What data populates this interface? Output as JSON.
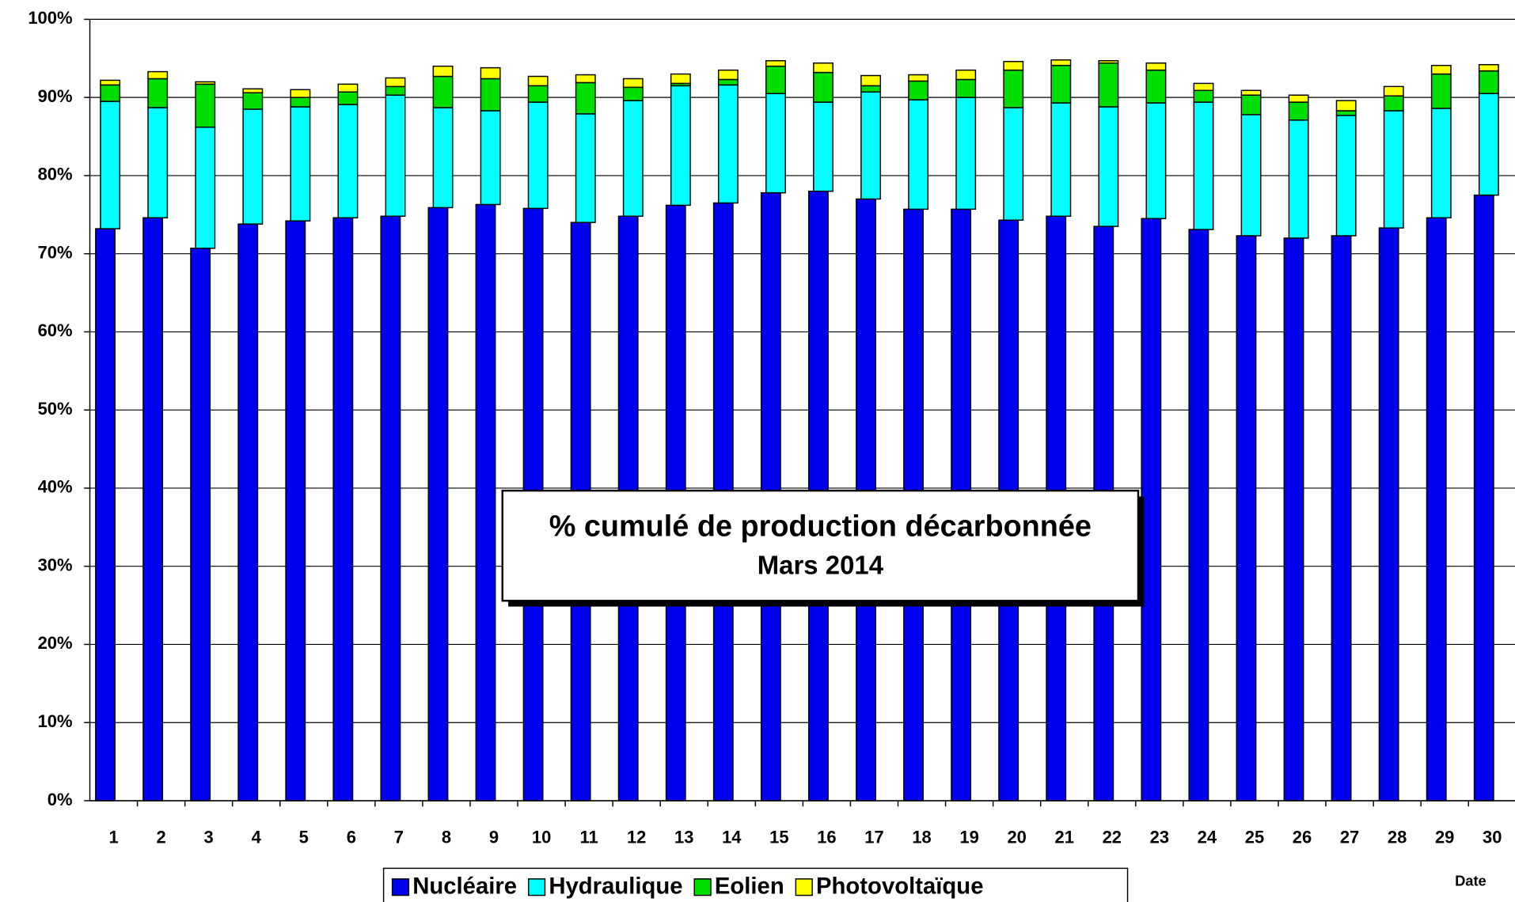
{
  "chart_data": {
    "type": "stacked-bar",
    "title": "% cumulé de production décarbonnée",
    "subtitle": "Mars 2014",
    "x_label": "Date",
    "categories": [
      "1",
      "2",
      "3",
      "4",
      "5",
      "6",
      "7",
      "8",
      "9",
      "10",
      "11",
      "12",
      "13",
      "14",
      "15",
      "16",
      "17",
      "18",
      "19",
      "20",
      "21",
      "22",
      "23",
      "24",
      "25",
      "26",
      "27",
      "28",
      "29",
      "30"
    ],
    "series": [
      {
        "name": "Nucléaire",
        "color": "#0000ee",
        "values": [
          73.2,
          74.6,
          70.7,
          73.8,
          74.2,
          74.6,
          74.8,
          75.9,
          76.3,
          75.8,
          74.0,
          74.8,
          76.2,
          76.5,
          77.8,
          78.0,
          77.0,
          75.7,
          75.7,
          74.3,
          74.8,
          73.5,
          74.5,
          73.1,
          72.3,
          72.0,
          72.3,
          73.3,
          74.6,
          77.5
        ]
      },
      {
        "name": "Hydraulique",
        "color": "#00ffff",
        "values": [
          16.3,
          14.1,
          15.5,
          14.7,
          14.6,
          14.5,
          15.5,
          12.8,
          12.0,
          13.6,
          13.9,
          14.8,
          15.3,
          15.1,
          12.7,
          11.4,
          13.7,
          14.0,
          14.3,
          14.4,
          14.5,
          15.3,
          14.8,
          16.3,
          15.5,
          15.1,
          15.4,
          15.0,
          14.0,
          13.0
        ]
      },
      {
        "name": "Eolien",
        "color": "#00dd00",
        "values": [
          2.1,
          3.7,
          5.5,
          2.1,
          1.2,
          1.6,
          1.1,
          4.0,
          4.1,
          2.1,
          4.0,
          1.7,
          0.3,
          0.7,
          3.5,
          3.8,
          0.8,
          2.4,
          2.3,
          4.8,
          4.8,
          5.6,
          4.2,
          1.5,
          2.5,
          2.3,
          0.6,
          1.9,
          4.4,
          2.9
        ]
      },
      {
        "name": "Photovoltaïque",
        "color": "#ffff00",
        "values": [
          0.6,
          0.9,
          0.3,
          0.5,
          1.0,
          1.0,
          1.1,
          1.3,
          1.4,
          1.2,
          1.0,
          1.1,
          1.2,
          1.2,
          0.7,
          1.2,
          1.3,
          0.8,
          1.2,
          1.1,
          0.7,
          0.3,
          0.9,
          0.9,
          0.6,
          0.9,
          1.3,
          1.2,
          1.1,
          0.8
        ]
      }
    ],
    "ylim": [
      0,
      100
    ],
    "yticks": [
      {
        "value": 0,
        "label": "0%"
      },
      {
        "value": 10,
        "label": "10%"
      },
      {
        "value": 20,
        "label": "20%"
      },
      {
        "value": 30,
        "label": "30%"
      },
      {
        "value": 40,
        "label": "40%"
      },
      {
        "value": 50,
        "label": "50%"
      },
      {
        "value": 60,
        "label": "60%"
      },
      {
        "value": 70,
        "label": "70%"
      },
      {
        "value": 80,
        "label": "80%"
      },
      {
        "value": 90,
        "label": "90%"
      },
      {
        "value": 100,
        "label": "100%"
      }
    ],
    "grid": true,
    "legend": "bottom"
  }
}
